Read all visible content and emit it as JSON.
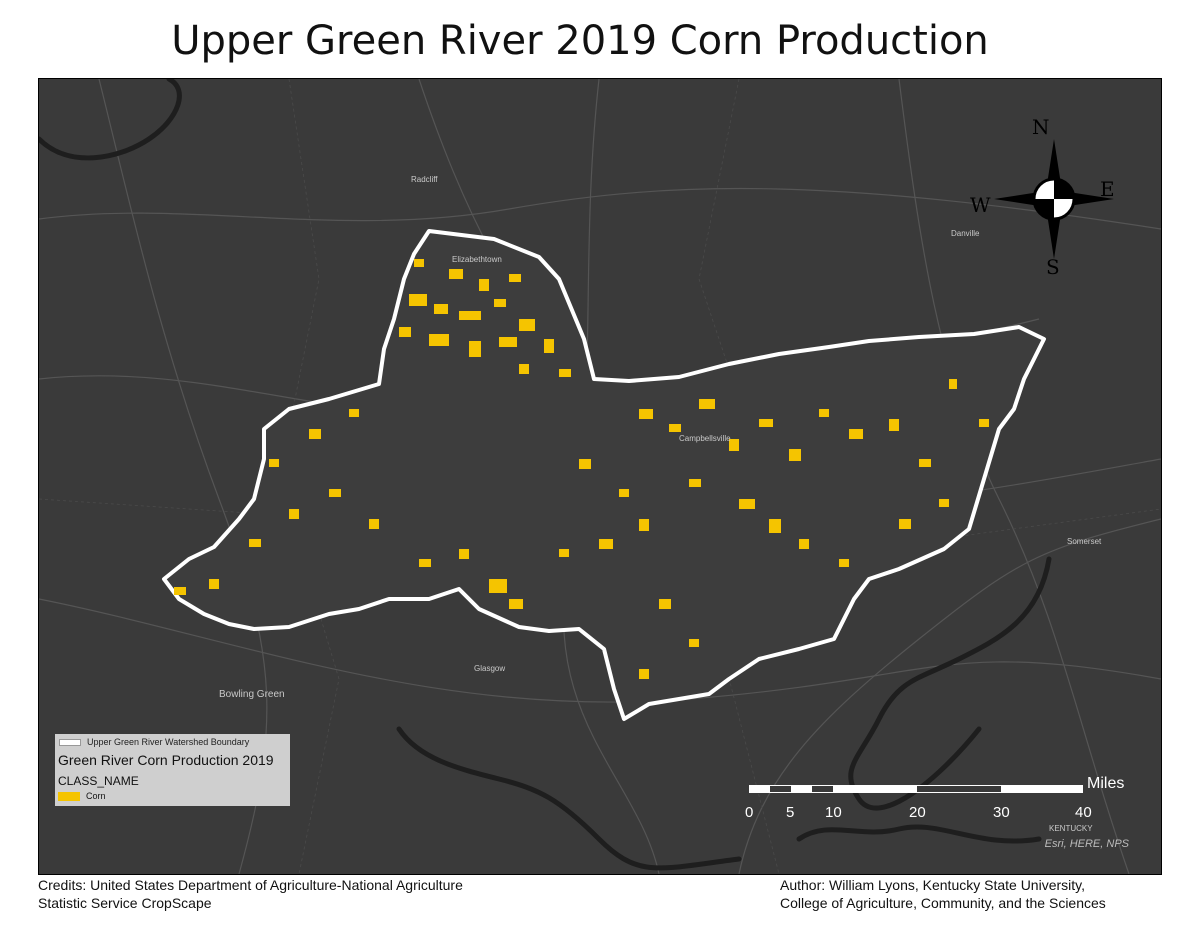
{
  "title": "Upper Green River 2019 Corn Production",
  "places": {
    "radcliff": "Radcliff",
    "elizabethtown": "Elizabethtown",
    "danville": "Danville",
    "campbellsville": "Campbellsville",
    "somerset": "Somerset",
    "glasgow": "Glasgow",
    "bowling_green": "Bowling Green",
    "kentucky": "KENTUCKY"
  },
  "compass": {
    "n": "N",
    "s": "S",
    "e": "E",
    "w": "W"
  },
  "legend": {
    "boundary_label": "Upper Green River Watershed Boundary",
    "layer_title": "Green River Corn Production 2019",
    "field_name": "CLASS_NAME",
    "class_label": "Corn",
    "corn_color": "#f5c400",
    "boundary_color": "#ffffff"
  },
  "scalebar": {
    "ticks": [
      "0",
      "5",
      "10",
      "20",
      "30",
      "40"
    ],
    "unit": "Miles"
  },
  "attribution": "Esri, HERE, NPS",
  "credits": {
    "line1": "Credits: United States Department of Agriculture-National Agriculture",
    "line2": "Statistic Service CropScape"
  },
  "author": {
    "line1": "Author: William Lyons, Kentucky State University,",
    "line2": "College of Agriculture, Community, and the Sciences"
  },
  "colors": {
    "basemap": "#3a3a3a",
    "water": "#222222",
    "roads": "#555555"
  }
}
